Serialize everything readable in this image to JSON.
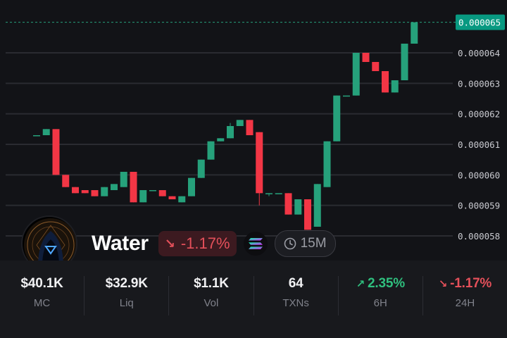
{
  "token": {
    "name": "Water",
    "change": "-1.17%",
    "chain_icon": "solana-icon",
    "timeframe": "15M",
    "avatar_icon": "hooded-figure-avatar"
  },
  "colors": {
    "up": "#26a17b",
    "down": "#f23645",
    "background": "#121317",
    "grid": "#2a2b31"
  },
  "chart_data": {
    "type": "candlestick",
    "y_ticks": [
      "0.000058",
      "0.000059",
      "0.000060",
      "0.000061",
      "0.000062",
      "0.000063",
      "0.000064"
    ],
    "ylim": [
      5.77e-05,
      6.55e-05
    ],
    "current_price": "0.000065",
    "candles": [
      {
        "o": 6.13e-05,
        "h": 6.13e-05,
        "l": 6.13e-05,
        "c": 6.13e-05
      },
      {
        "o": 6.13e-05,
        "h": 6.15e-05,
        "l": 6.13e-05,
        "c": 6.15e-05
      },
      {
        "o": 6.15e-05,
        "h": 6.15e-05,
        "l": 6e-05,
        "c": 6e-05
      },
      {
        "o": 6e-05,
        "h": 6e-05,
        "l": 5.96e-05,
        "c": 5.96e-05
      },
      {
        "o": 5.96e-05,
        "h": 5.96e-05,
        "l": 5.94e-05,
        "c": 5.94e-05
      },
      {
        "o": 5.95e-05,
        "h": 5.95e-05,
        "l": 5.94e-05,
        "c": 5.94e-05
      },
      {
        "o": 5.95e-05,
        "h": 5.95e-05,
        "l": 5.93e-05,
        "c": 5.93e-05
      },
      {
        "o": 5.93e-05,
        "h": 5.96e-05,
        "l": 5.93e-05,
        "c": 5.96e-05
      },
      {
        "o": 5.95e-05,
        "h": 5.97e-05,
        "l": 5.95e-05,
        "c": 5.97e-05
      },
      {
        "o": 5.96e-05,
        "h": 6.01e-05,
        "l": 5.96e-05,
        "c": 6.01e-05
      },
      {
        "o": 6.01e-05,
        "h": 6.01e-05,
        "l": 5.91e-05,
        "c": 5.91e-05
      },
      {
        "o": 5.91e-05,
        "h": 5.95e-05,
        "l": 5.91e-05,
        "c": 5.95e-05
      },
      {
        "o": 5.95e-05,
        "h": 5.95e-05,
        "l": 5.95e-05,
        "c": 5.95e-05
      },
      {
        "o": 5.95e-05,
        "h": 5.95e-05,
        "l": 5.93e-05,
        "c": 5.93e-05
      },
      {
        "o": 5.93e-05,
        "h": 5.93e-05,
        "l": 5.92e-05,
        "c": 5.92e-05
      },
      {
        "o": 5.91e-05,
        "h": 5.93e-05,
        "l": 5.91e-05,
        "c": 5.93e-05
      },
      {
        "o": 5.93e-05,
        "h": 5.99e-05,
        "l": 5.93e-05,
        "c": 5.99e-05
      },
      {
        "o": 5.99e-05,
        "h": 6.05e-05,
        "l": 5.99e-05,
        "c": 6.05e-05
      },
      {
        "o": 6.05e-05,
        "h": 6.11e-05,
        "l": 6.05e-05,
        "c": 6.11e-05
      },
      {
        "o": 6.11e-05,
        "h": 6.12e-05,
        "l": 6.11e-05,
        "c": 6.12e-05
      },
      {
        "o": 6.12e-05,
        "h": 6.17e-05,
        "l": 6.12e-05,
        "c": 6.16e-05
      },
      {
        "o": 6.16e-05,
        "h": 6.18e-05,
        "l": 6.16e-05,
        "c": 6.18e-05
      },
      {
        "o": 6.18e-05,
        "h": 6.18e-05,
        "l": 6.13e-05,
        "c": 6.13e-05
      },
      {
        "o": 6.14e-05,
        "h": 6.14e-05,
        "l": 5.9e-05,
        "c": 5.94e-05
      },
      {
        "o": 5.94e-05,
        "h": 5.94e-05,
        "l": 5.93e-05,
        "c": 5.94e-05
      },
      {
        "o": 5.94e-05,
        "h": 5.94e-05,
        "l": 5.94e-05,
        "c": 5.94e-05
      },
      {
        "o": 5.94e-05,
        "h": 5.94e-05,
        "l": 5.87e-05,
        "c": 5.87e-05
      },
      {
        "o": 5.87e-05,
        "h": 5.92e-05,
        "l": 5.87e-05,
        "c": 5.92e-05
      },
      {
        "o": 5.92e-05,
        "h": 5.92e-05,
        "l": 5.82e-05,
        "c": 5.82e-05
      },
      {
        "o": 5.83e-05,
        "h": 5.97e-05,
        "l": 5.83e-05,
        "c": 5.97e-05
      },
      {
        "o": 5.96e-05,
        "h": 6.11e-05,
        "l": 5.96e-05,
        "c": 6.11e-05
      },
      {
        "o": 6.11e-05,
        "h": 6.26e-05,
        "l": 6.11e-05,
        "c": 6.26e-05
      },
      {
        "o": 6.26e-05,
        "h": 6.26e-05,
        "l": 6.26e-05,
        "c": 6.26e-05
      },
      {
        "o": 6.26e-05,
        "h": 6.4e-05,
        "l": 6.26e-05,
        "c": 6.4e-05
      },
      {
        "o": 6.4e-05,
        "h": 6.4e-05,
        "l": 6.37e-05,
        "c": 6.37e-05
      },
      {
        "o": 6.37e-05,
        "h": 6.37e-05,
        "l": 6.34e-05,
        "c": 6.34e-05
      },
      {
        "o": 6.34e-05,
        "h": 6.34e-05,
        "l": 6.27e-05,
        "c": 6.27e-05
      },
      {
        "o": 6.27e-05,
        "h": 6.31e-05,
        "l": 6.27e-05,
        "c": 6.31e-05
      },
      {
        "o": 6.31e-05,
        "h": 6.43e-05,
        "l": 6.31e-05,
        "c": 6.43e-05
      },
      {
        "o": 6.43e-05,
        "h": 6.5e-05,
        "l": 6.43e-05,
        "c": 6.5e-05
      }
    ]
  },
  "stats": [
    {
      "value": "$40.1K",
      "label": "MC"
    },
    {
      "value": "$32.9K",
      "label": "Liq"
    },
    {
      "value": "$1.1K",
      "label": "Vol"
    },
    {
      "value": "64",
      "label": "TXNs"
    },
    {
      "value": "2.35%",
      "label": "6H",
      "direction": "up"
    },
    {
      "value": "-1.17%",
      "label": "24H",
      "direction": "down"
    }
  ]
}
